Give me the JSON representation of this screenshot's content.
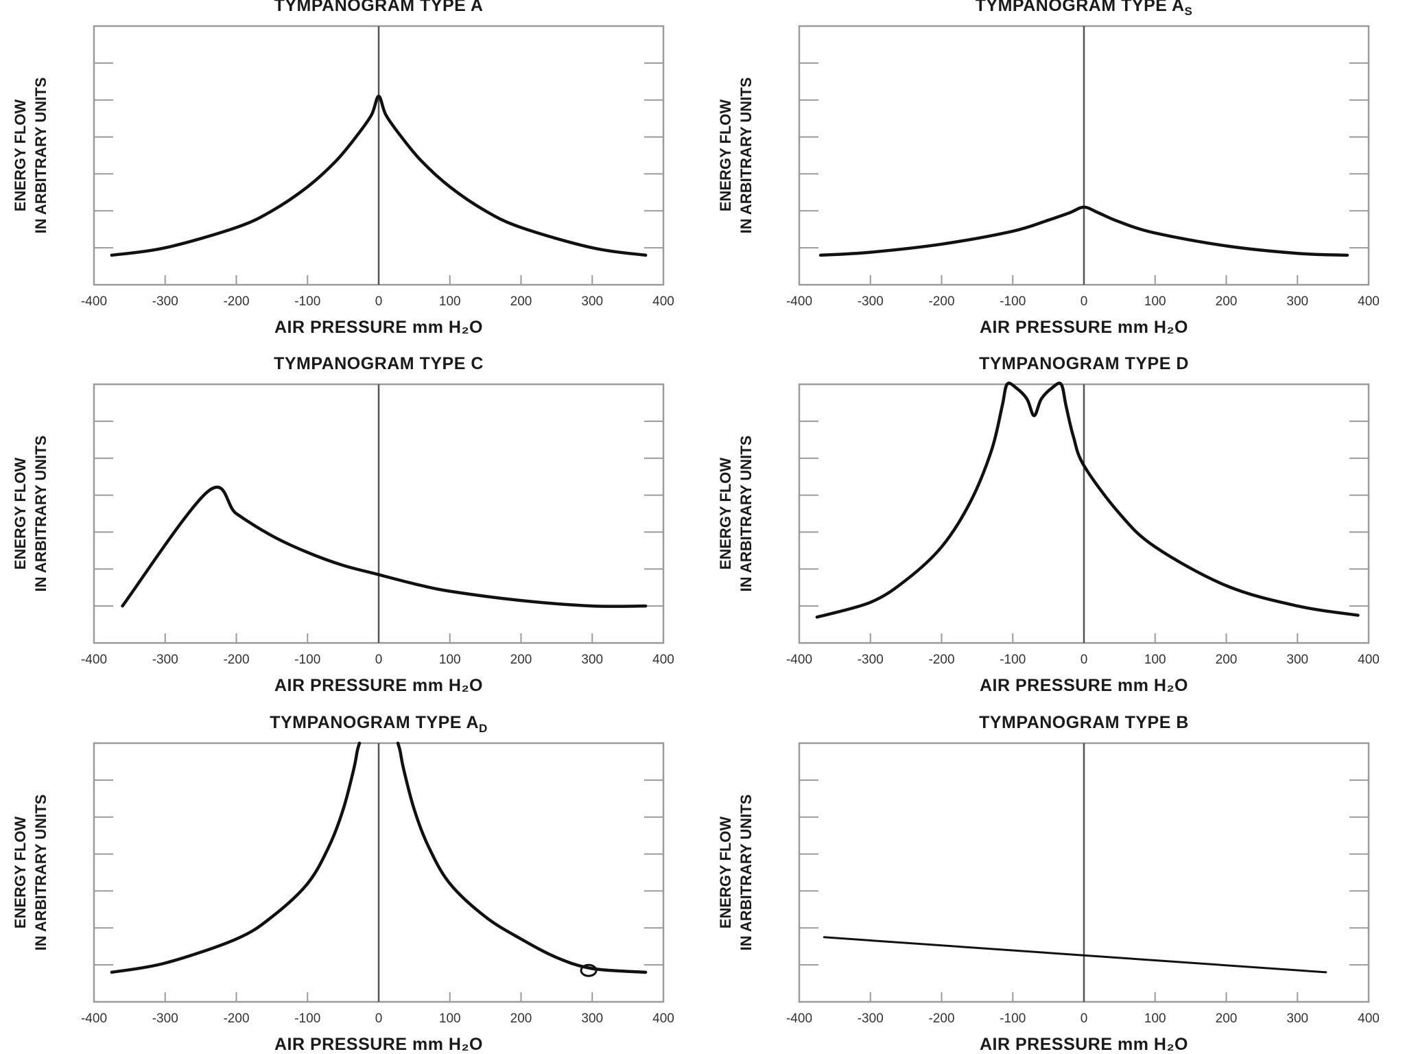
{
  "chart_data": [
    {
      "type": "line",
      "title": "TYMPANOGRAM TYPE A",
      "xlabel": "AIR PRESSURE mm H₂O",
      "ylabel": [
        "ENERGY FLOW",
        "IN ARBITRARY UNITS"
      ],
      "xlim": [
        -400,
        400
      ],
      "ylim": [
        0,
        7
      ],
      "xticks": [
        "-400",
        "-300",
        "-200",
        "-100",
        "0",
        "100",
        "200",
        "300",
        "400"
      ],
      "grid": false,
      "series": [
        {
          "x": [
            -375,
            -300,
            -200,
            -150,
            -100,
            -60,
            -30,
            -10,
            0,
            10,
            30,
            60,
            100,
            150,
            200,
            300,
            375
          ],
          "y": [
            0.8,
            1.0,
            1.55,
            2.0,
            2.65,
            3.35,
            4.05,
            4.6,
            5.1,
            4.6,
            4.05,
            3.35,
            2.65,
            2.0,
            1.55,
            1.0,
            0.8
          ]
        }
      ]
    },
    {
      "type": "line",
      "title": "TYMPANOGRAM TYPE A",
      "title_sub": "S",
      "xlabel": "AIR PRESSURE mm H₂O",
      "ylabel": [
        "ENERGY FLOW",
        "IN ARBITRARY UNITS"
      ],
      "xlim": [
        -400,
        400
      ],
      "ylim": [
        0,
        7
      ],
      "xticks": [
        "-400",
        "-300",
        "-200",
        "-100",
        "0",
        "100",
        "200",
        "300",
        "400"
      ],
      "grid": false,
      "series": [
        {
          "x": [
            -370,
            -300,
            -200,
            -100,
            -50,
            -20,
            0,
            20,
            50,
            100,
            200,
            300,
            370
          ],
          "y": [
            0.8,
            0.88,
            1.1,
            1.45,
            1.75,
            1.95,
            2.1,
            1.95,
            1.7,
            1.4,
            1.05,
            0.85,
            0.8
          ]
        }
      ]
    },
    {
      "type": "line",
      "title": "TYMPANOGRAM TYPE C",
      "xlabel": "AIR PRESSURE mm H₂O",
      "ylabel": [
        "ENERGY FLOW",
        "IN ARBITRARY UNITS"
      ],
      "xlim": [
        -400,
        400
      ],
      "ylim": [
        0,
        7
      ],
      "xticks": [
        "-400",
        "-300",
        "-200",
        "-100",
        "0",
        "100",
        "200",
        "300",
        "400"
      ],
      "grid": false,
      "series": [
        {
          "x": [
            -360,
            -240,
            -200,
            -150,
            -100,
            -50,
            0,
            50,
            100,
            200,
            300,
            375
          ],
          "y": [
            1.0,
            4.1,
            3.5,
            2.9,
            2.45,
            2.1,
            1.85,
            1.6,
            1.4,
            1.15,
            1.0,
            1.0
          ]
        }
      ]
    },
    {
      "type": "line",
      "title": "TYMPANOGRAM TYPE D",
      "xlabel": "AIR PRESSURE mm H₂O",
      "ylabel": [
        "ENERGY FLOW",
        "IN ARBITRARY UNITS"
      ],
      "xlim": [
        -400,
        400
      ],
      "ylim": [
        0,
        7
      ],
      "xticks": [
        "-400",
        "-300",
        "-200",
        "-100",
        "0",
        "100",
        "200",
        "300",
        "400"
      ],
      "grid": false,
      "series": [
        {
          "x": [
            -375,
            -300,
            -250,
            -200,
            -160,
            -130,
            -115,
            -108,
            -95,
            -80,
            -70,
            -60,
            -45,
            -32,
            -25,
            -15,
            0,
            50,
            100,
            200,
            300,
            385
          ],
          "y": [
            0.7,
            1.1,
            1.7,
            2.6,
            3.8,
            5.2,
            6.4,
            7.0,
            6.9,
            6.6,
            6.15,
            6.6,
            6.9,
            7.0,
            6.4,
            5.6,
            4.8,
            3.5,
            2.6,
            1.55,
            1.0,
            0.75
          ]
        }
      ]
    },
    {
      "type": "line",
      "title": "TYMPANOGRAM TYPE A",
      "title_sub": "D",
      "xlabel": "AIR PRESSURE mm H₂O",
      "ylabel": [
        "ENERGY FLOW",
        "IN ARBITRARY UNITS"
      ],
      "xlim": [
        -400,
        400
      ],
      "ylim": [
        0,
        7
      ],
      "xticks": [
        "-400",
        "-300",
        "-200",
        "-100",
        "0",
        "100",
        "200",
        "300",
        "400"
      ],
      "grid": false,
      "series": [
        {
          "x": [
            -375,
            -300,
            -200,
            -150,
            -100,
            -70,
            -50,
            -35,
            -30,
            -27
          ],
          "y": [
            0.8,
            1.05,
            1.7,
            2.3,
            3.2,
            4.2,
            5.2,
            6.3,
            6.8,
            7.0
          ]
        },
        {
          "x": [
            27,
            30,
            35,
            50,
            70,
            100,
            150,
            200,
            250,
            300,
            375
          ],
          "y": [
            7.0,
            6.8,
            6.3,
            5.2,
            4.2,
            3.2,
            2.3,
            1.7,
            1.2,
            0.9,
            0.8
          ]
        }
      ],
      "markers": [
        {
          "x": 295,
          "y": 0.85,
          "shape": "circle"
        }
      ]
    },
    {
      "type": "line",
      "title": "TYMPANOGRAM TYPE B",
      "xlabel": "AIR PRESSURE mm H₂O",
      "ylabel": [
        "ENERGY FLOW",
        "IN ARBITRARY UNITS"
      ],
      "xlim": [
        -400,
        400
      ],
      "ylim": [
        0,
        7
      ],
      "xticks": [
        "-400",
        "-300",
        "-200",
        "-100",
        "0",
        "100",
        "200",
        "300",
        "400"
      ],
      "grid": false,
      "series": [
        {
          "x": [
            -365,
            340
          ],
          "y": [
            1.75,
            0.8
          ]
        }
      ]
    }
  ]
}
